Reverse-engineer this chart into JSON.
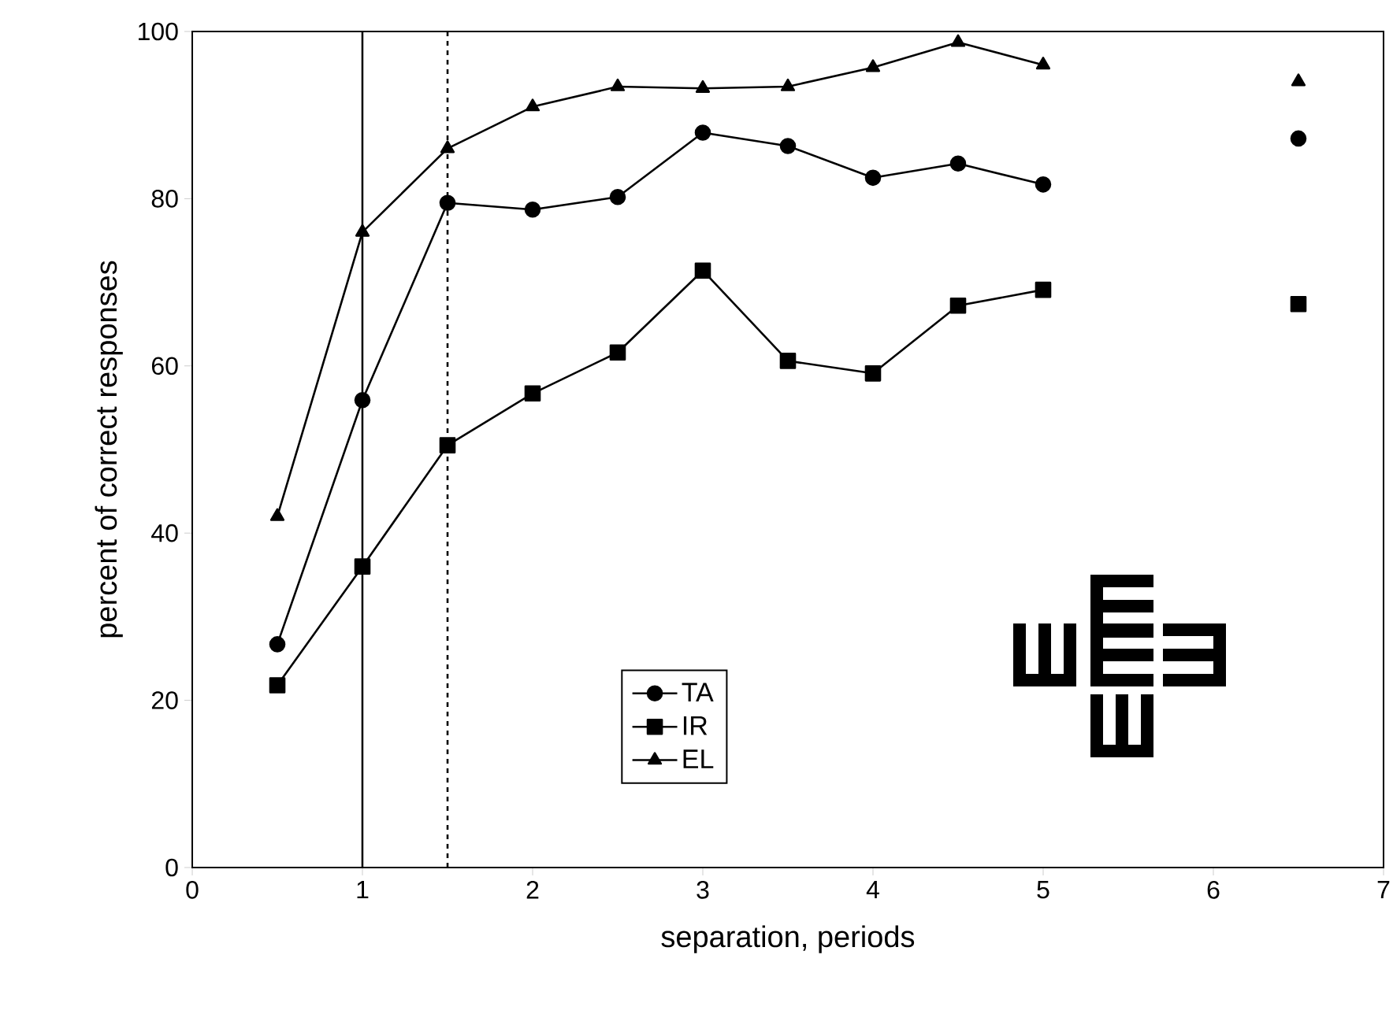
{
  "chart_data": {
    "type": "line",
    "xlabel": "separation, periods",
    "ylabel": "percent of correct responses",
    "x": [
      0.5,
      1,
      1.5,
      2,
      2.5,
      3,
      3.5,
      4,
      4.5,
      5,
      6,
      6.5
    ],
    "series": [
      {
        "name": "TA",
        "color": "#000000",
        "marker": "circle",
        "values": [
          26.7,
          55.9,
          79.5,
          78.7,
          80.2,
          87.9,
          86.3,
          82.5,
          84.2,
          81.7,
          null,
          87.2
        ]
      },
      {
        "name": "IR",
        "color": "#000000",
        "marker": "square",
        "values": [
          21.8,
          36,
          50.5,
          56.7,
          61.6,
          71.4,
          60.6,
          59.1,
          67.2,
          69.1,
          null,
          67.4
        ]
      },
      {
        "name": "EL",
        "color": "#000000",
        "marker": "triangle",
        "values": [
          42,
          76,
          86,
          91,
          93.4,
          93.2,
          93.4,
          95.7,
          98.7,
          96,
          null,
          94
        ]
      }
    ],
    "ref_lines": [
      {
        "axis": "x",
        "value": 1,
        "color": "#000000",
        "line_style": "solid"
      },
      {
        "axis": "x",
        "value": 1.5,
        "color": "#000000",
        "line_style": "dashed"
      }
    ],
    "xlim": [
      0,
      7
    ],
    "xticks": [
      0,
      1,
      2,
      3,
      4,
      5,
      6,
      7
    ],
    "ylim": [
      0,
      100
    ],
    "yticks": [
      0,
      20,
      40,
      60,
      80,
      100
    ],
    "grid": false,
    "legend": "bottom"
  }
}
